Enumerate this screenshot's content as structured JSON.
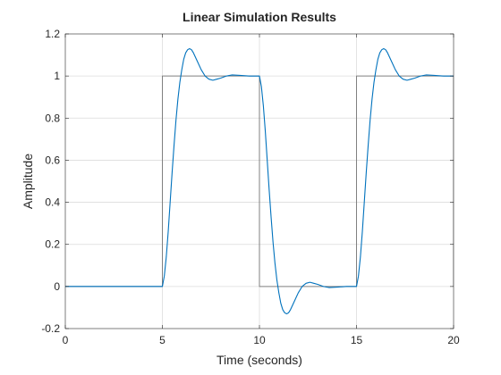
{
  "chart_data": {
    "type": "line",
    "title": "Linear Simulation Results",
    "xlabel": "Time (seconds)",
    "ylabel": "Amplitude",
    "xlim": [
      0,
      20
    ],
    "ylim": [
      -0.2,
      1.2
    ],
    "xticks": [
      0,
      5,
      10,
      15,
      20
    ],
    "yticks": [
      -0.2,
      0,
      0.2,
      0.4,
      0.6,
      0.8,
      1,
      1.2
    ],
    "xtick_labels": [
      "0",
      "5",
      "10",
      "15",
      "20"
    ],
    "ytick_labels": [
      "-0.2",
      "0",
      "0.2",
      "0.4",
      "0.6",
      "0.8",
      "1",
      "1.2"
    ],
    "grid": true,
    "series": [
      {
        "color": "#808080",
        "x": [
          0,
          4.95,
          5.0,
          5.0,
          9.95,
          10.0,
          10.0,
          14.95,
          15.0,
          15.0,
          19.95,
          20.0,
          20.0
        ],
        "y": [
          0,
          0,
          0,
          1,
          1,
          1,
          0,
          0,
          0,
          1,
          1,
          1,
          0
        ]
      },
      {
        "color": "#0072BD",
        "x": [
          0,
          5.0,
          5.1,
          5.2,
          5.3,
          5.4,
          5.5,
          5.6,
          5.7,
          5.8,
          5.9,
          6.0,
          6.1,
          6.2,
          6.3,
          6.4,
          6.5,
          6.6,
          6.8,
          7.0,
          7.2,
          7.4,
          7.6,
          7.8,
          8.0,
          8.3,
          8.6,
          9.0,
          9.5,
          10.0,
          10.1,
          10.2,
          10.3,
          10.4,
          10.5,
          10.6,
          10.7,
          10.8,
          10.9,
          11.0,
          11.1,
          11.2,
          11.3,
          11.4,
          11.5,
          11.6,
          11.8,
          12.0,
          12.2,
          12.4,
          12.6,
          12.8,
          13.0,
          13.3,
          13.6,
          14.0,
          14.5,
          15.0,
          15.1,
          15.2,
          15.3,
          15.4,
          15.5,
          15.6,
          15.7,
          15.8,
          15.9,
          16.0,
          16.1,
          16.2,
          16.3,
          16.4,
          16.5,
          16.6,
          16.8,
          17.0,
          17.2,
          17.4,
          17.6,
          17.8,
          18.0,
          18.3,
          18.6,
          19.0,
          19.5,
          20.0
        ],
        "y": [
          0,
          0,
          0.05,
          0.14,
          0.26,
          0.4,
          0.54,
          0.67,
          0.79,
          0.89,
          0.97,
          1.03,
          1.08,
          1.11,
          1.125,
          1.13,
          1.125,
          1.11,
          1.07,
          1.03,
          1.0,
          0.985,
          0.98,
          0.985,
          0.99,
          1.0,
          1.005,
          1.003,
          1.0,
          1.0,
          0.95,
          0.86,
          0.74,
          0.6,
          0.46,
          0.33,
          0.21,
          0.11,
          0.03,
          -0.03,
          -0.08,
          -0.11,
          -0.125,
          -0.13,
          -0.125,
          -0.11,
          -0.07,
          -0.03,
          0,
          0.015,
          0.02,
          0.015,
          0.01,
          0,
          -0.005,
          -0.003,
          0,
          0,
          0.05,
          0.14,
          0.26,
          0.4,
          0.54,
          0.67,
          0.79,
          0.89,
          0.97,
          1.03,
          1.08,
          1.11,
          1.125,
          1.13,
          1.125,
          1.11,
          1.07,
          1.03,
          1.0,
          0.985,
          0.98,
          0.985,
          0.99,
          1.0,
          1.005,
          1.003,
          1.0,
          1.0
        ]
      }
    ]
  }
}
